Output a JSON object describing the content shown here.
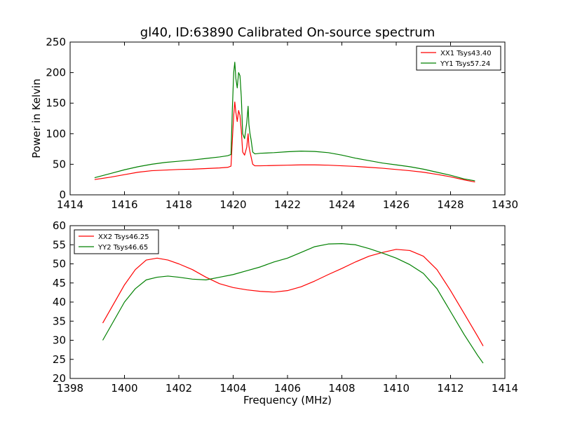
{
  "title": "gl40, ID:63890 Calibrated On-source spectrum",
  "colors": {
    "xx": "#ff0000",
    "yy": "#008000",
    "axis": "#000000"
  },
  "chart_data": [
    {
      "type": "line",
      "title": "gl40, ID:63890 Calibrated On-source spectrum",
      "xlabel": "",
      "ylabel": "Power in Kelvin",
      "xlim": [
        1414,
        1430
      ],
      "ylim": [
        0,
        250
      ],
      "xticks": [
        1414,
        1416,
        1418,
        1420,
        1422,
        1424,
        1426,
        1428,
        1430
      ],
      "yticks": [
        0,
        50,
        100,
        150,
        200,
        250
      ],
      "legend_position": "top-right",
      "series": [
        {
          "name": "XX1 Tsys43.40",
          "color": "#ff0000",
          "x": [
            1414.9,
            1415.5,
            1416.0,
            1416.5,
            1417.0,
            1417.5,
            1418.0,
            1418.5,
            1419.0,
            1419.5,
            1419.8,
            1419.92,
            1419.97,
            1420.02,
            1420.06,
            1420.1,
            1420.15,
            1420.2,
            1420.25,
            1420.3,
            1420.35,
            1420.42,
            1420.5,
            1420.55,
            1420.58,
            1420.62,
            1420.66,
            1420.72,
            1420.8,
            1421.0,
            1421.5,
            1422.0,
            1422.5,
            1423.0,
            1423.5,
            1424.0,
            1424.5,
            1425.0,
            1425.5,
            1426.0,
            1426.5,
            1427.0,
            1427.5,
            1428.0,
            1428.5,
            1428.9
          ],
          "y": [
            25,
            29,
            33,
            37,
            39.5,
            40.5,
            41.5,
            42,
            43,
            44,
            45,
            47,
            90,
            130,
            152,
            135,
            120,
            138,
            130,
            105,
            70,
            65,
            78,
            100,
            80,
            70,
            62,
            50,
            47.5,
            47.5,
            48,
            48.5,
            49,
            49,
            48.5,
            47.5,
            46.5,
            45,
            43.5,
            41.5,
            39.5,
            37,
            33.5,
            29.5,
            24.5,
            21
          ]
        },
        {
          "name": "YY1 Tsys57.24",
          "color": "#008000",
          "x": [
            1414.9,
            1415.5,
            1416.0,
            1416.5,
            1417.0,
            1417.5,
            1418.0,
            1418.5,
            1419.0,
            1419.5,
            1419.8,
            1419.92,
            1419.97,
            1420.02,
            1420.06,
            1420.1,
            1420.15,
            1420.2,
            1420.25,
            1420.3,
            1420.35,
            1420.42,
            1420.5,
            1420.55,
            1420.58,
            1420.62,
            1420.66,
            1420.72,
            1420.8,
            1421.0,
            1421.5,
            1422.0,
            1422.5,
            1423.0,
            1423.5,
            1424.0,
            1424.5,
            1425.0,
            1425.5,
            1426.0,
            1426.5,
            1427.0,
            1427.5,
            1428.0,
            1428.5,
            1428.9
          ],
          "y": [
            28,
            35,
            41,
            46,
            50,
            53,
            55,
            57,
            59.5,
            62,
            64,
            66,
            140,
            200,
            217,
            190,
            175,
            200,
            195,
            160,
            100,
            92,
            118,
            145,
            115,
            100,
            90,
            70,
            67,
            68,
            69,
            70.5,
            71.5,
            71,
            69,
            65,
            60,
            56,
            52,
            49,
            46,
            42,
            37,
            32,
            26,
            23
          ]
        }
      ]
    },
    {
      "type": "line",
      "title": "",
      "xlabel": "Frequency (MHz)",
      "ylabel": "",
      "xlim": [
        1398,
        1414
      ],
      "ylim": [
        20,
        60
      ],
      "xticks": [
        1398,
        1400,
        1402,
        1404,
        1406,
        1408,
        1410,
        1412,
        1414
      ],
      "yticks": [
        20,
        25,
        30,
        35,
        40,
        45,
        50,
        55,
        60
      ],
      "legend_position": "top-left",
      "series": [
        {
          "name": "XX2 Tsys46.25",
          "color": "#ff0000",
          "x": [
            1399.2,
            1399.6,
            1400.0,
            1400.4,
            1400.8,
            1401.2,
            1401.6,
            1402.0,
            1402.5,
            1403.0,
            1403.5,
            1404.0,
            1404.5,
            1405.0,
            1405.5,
            1406.0,
            1406.5,
            1407.0,
            1407.5,
            1408.0,
            1408.5,
            1409.0,
            1409.5,
            1410.0,
            1410.5,
            1411.0,
            1411.5,
            1412.0,
            1412.5,
            1413.0,
            1413.2
          ],
          "y": [
            34.5,
            39.5,
            44.5,
            48.5,
            51,
            51.5,
            51,
            50,
            48.5,
            46.5,
            44.8,
            43.8,
            43.2,
            42.8,
            42.6,
            43,
            44,
            45.5,
            47.2,
            48.8,
            50.5,
            52,
            53,
            53.8,
            53.5,
            52,
            48.5,
            43,
            37,
            31,
            28.5
          ]
        },
        {
          "name": "YY2 Tsys46.65",
          "color": "#008000",
          "x": [
            1399.2,
            1399.6,
            1400.0,
            1400.4,
            1400.8,
            1401.2,
            1401.6,
            1402.0,
            1402.5,
            1403.0,
            1403.5,
            1404.0,
            1404.5,
            1405.0,
            1405.5,
            1406.0,
            1406.5,
            1407.0,
            1407.5,
            1408.0,
            1408.5,
            1409.0,
            1409.5,
            1410.0,
            1410.5,
            1411.0,
            1411.5,
            1412.0,
            1412.5,
            1413.0,
            1413.2
          ],
          "y": [
            30,
            35,
            40,
            43.5,
            45.8,
            46.5,
            46.8,
            46.5,
            46,
            45.8,
            46.5,
            47.2,
            48.2,
            49.2,
            50.5,
            51.5,
            53,
            54.5,
            55.2,
            55.3,
            55,
            54,
            52.8,
            51.5,
            49.8,
            47.5,
            43.5,
            37.5,
            31.5,
            26,
            24
          ]
        }
      ]
    }
  ]
}
